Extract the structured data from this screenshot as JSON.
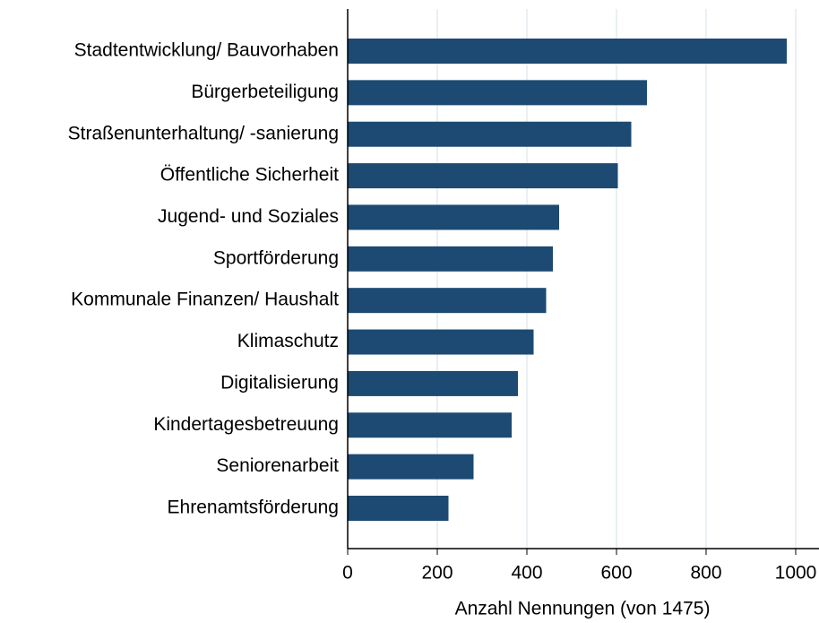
{
  "chart_data": {
    "type": "bar",
    "orientation": "horizontal",
    "xlabel": "Anzahl Nennungen (von 1475)",
    "categories": [
      "Stadtentwicklung/ Bauvorhaben",
      "Bürgerbeteiligung",
      "Straßenunterhaltung/ -sanierung",
      "Öffentliche Sicherheit",
      "Jugend- und Soziales",
      "Sportförderung",
      "Kommunale Finanzen/ Haushalt",
      "Klimaschutz",
      "Digitalisierung",
      "Kindertagesbetreuung",
      "Seniorenarbeit",
      "Ehrenamtsförderung"
    ],
    "values": [
      980,
      668,
      633,
      603,
      472,
      458,
      443,
      415,
      380,
      366,
      281,
      225
    ],
    "color": "#1c4a72",
    "xlim": [
      0,
      1052
    ],
    "xticks": [
      0,
      200,
      400,
      600,
      800,
      1000
    ],
    "grid": true
  }
}
